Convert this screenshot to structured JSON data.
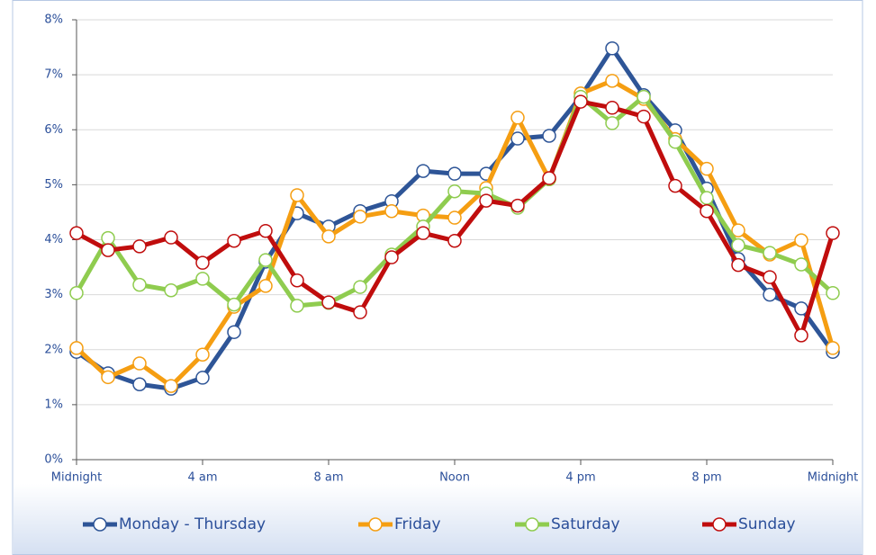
{
  "chart_data": {
    "type": "line",
    "x": [
      0,
      1,
      2,
      3,
      4,
      5,
      6,
      7,
      8,
      9,
      10,
      11,
      12,
      13,
      14,
      15,
      16,
      17,
      18,
      19,
      20,
      21,
      22,
      23,
      24
    ],
    "xlim": [
      0,
      24
    ],
    "xticks": [
      {
        "value": 0,
        "label": "Midnight"
      },
      {
        "value": 4,
        "label": "4 am"
      },
      {
        "value": 8,
        "label": "8 am"
      },
      {
        "value": 12,
        "label": "Noon"
      },
      {
        "value": 16,
        "label": "4 pm"
      },
      {
        "value": 20,
        "label": "8 pm"
      },
      {
        "value": 24,
        "label": "Midnight"
      }
    ],
    "ylim": [
      0,
      8
    ],
    "yticks": [
      {
        "value": 0,
        "label": "0%"
      },
      {
        "value": 1,
        "label": "1%"
      },
      {
        "value": 2,
        "label": "2%"
      },
      {
        "value": 3,
        "label": "3%"
      },
      {
        "value": 4,
        "label": "4%"
      },
      {
        "value": 5,
        "label": "5%"
      },
      {
        "value": 6,
        "label": "6%"
      },
      {
        "value": 7,
        "label": "7%"
      },
      {
        "value": 8,
        "label": "8%"
      }
    ],
    "grid": true,
    "legend": "bottom",
    "series": [
      {
        "name": "Monday - Thursday",
        "color": "#2e5597",
        "values": [
          1.96,
          1.57,
          1.37,
          1.29,
          1.49,
          2.32,
          3.6,
          4.48,
          4.24,
          4.52,
          4.7,
          5.25,
          5.2,
          5.2,
          5.84,
          5.89,
          6.6,
          7.48,
          6.63,
          5.99,
          4.93,
          3.65,
          3.0,
          2.75,
          1.96
        ]
      },
      {
        "name": "Friday",
        "color": "#f59e12",
        "values": [
          2.03,
          1.5,
          1.75,
          1.34,
          1.91,
          2.78,
          3.16,
          4.81,
          4.06,
          4.42,
          4.52,
          4.44,
          4.4,
          4.94,
          6.22,
          5.1,
          6.66,
          6.89,
          6.56,
          5.83,
          5.29,
          4.17,
          3.73,
          3.99,
          2.03
        ]
      },
      {
        "name": "Saturday",
        "color": "#8fcc4f",
        "values": [
          3.03,
          4.03,
          3.18,
          3.08,
          3.29,
          2.82,
          3.63,
          2.8,
          2.85,
          3.14,
          3.73,
          4.24,
          4.88,
          4.84,
          4.58,
          5.1,
          6.6,
          6.12,
          6.6,
          5.78,
          4.76,
          3.9,
          3.76,
          3.55,
          3.03
        ]
      },
      {
        "name": "Sunday",
        "color": "#c00d0d",
        "values": [
          4.12,
          3.81,
          3.88,
          4.04,
          3.58,
          3.98,
          4.16,
          3.26,
          2.86,
          2.68,
          3.68,
          4.12,
          3.98,
          4.71,
          4.62,
          5.12,
          6.51,
          6.4,
          6.24,
          4.98,
          4.52,
          3.54,
          3.32,
          2.26,
          4.12
        ]
      }
    ]
  }
}
